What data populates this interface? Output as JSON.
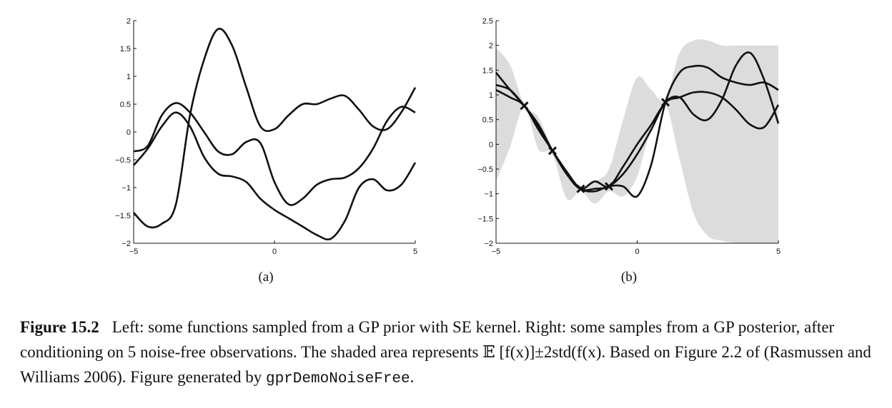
{
  "caption": {
    "figure_number": "Figure 15.2",
    "text_1": "Left: some functions sampled from a GP prior with SE kernel. Right: some samples from a GP posterior, after conditioning on 5 noise-free observations. The shaded area represents ",
    "formula": "𝔼 [f(x)]±2std(f(x)",
    "text_2": ". Based on Figure 2.2 of (Rasmussen and Williams 2006). Figure generated by ",
    "code": "gprDemoNoiseFree",
    "text_3": "."
  },
  "chart_data": [
    {
      "type": "line",
      "panel_label": "(a)",
      "xlim": [
        -5,
        5
      ],
      "ylim": [
        -2,
        2
      ],
      "xticks": [
        -5,
        0,
        5
      ],
      "xtick_labels": [
        "−5",
        "0",
        "5"
      ],
      "yticks": [
        -2,
        -1.5,
        -1,
        -0.5,
        0,
        0.5,
        1,
        1.5,
        2
      ],
      "ytick_labels": [
        "−2",
        "−1.5",
        "−1",
        "−0.5",
        "0",
        "0.5",
        "1",
        "1.5",
        "2"
      ],
      "grid": false,
      "series": [
        {
          "x": [
            -5,
            -4.5,
            -4,
            -3.5,
            -3,
            -2.5,
            -2,
            -1.5,
            -1,
            -0.5,
            0,
            0.5,
            1,
            1.5,
            2,
            2.5,
            3,
            3.5,
            4,
            4.5,
            5
          ],
          "y": [
            -0.6,
            -0.3,
            0.1,
            0.35,
            0.1,
            -0.45,
            -0.75,
            -0.8,
            -0.9,
            -1.2,
            -1.4,
            -1.55,
            -1.7,
            -1.85,
            -1.92,
            -1.6,
            -1.0,
            -0.85,
            -1.05,
            -0.95,
            -0.55
          ]
        },
        {
          "x": [
            -5,
            -4.5,
            -4,
            -3.5,
            -3,
            -2.5,
            -2,
            -1.5,
            -1,
            -0.5,
            0,
            0.5,
            1,
            1.5,
            2,
            2.5,
            3,
            3.5,
            4,
            4.5,
            5
          ],
          "y": [
            -1.45,
            -1.7,
            -1.65,
            -1.3,
            0.3,
            1.3,
            1.85,
            1.55,
            0.8,
            0.1,
            0.05,
            0.3,
            0.5,
            0.5,
            0.6,
            0.65,
            0.4,
            0.1,
            0.05,
            0.35,
            0.8
          ]
        },
        {
          "x": [
            -5,
            -4.5,
            -4,
            -3.5,
            -3,
            -2.5,
            -2,
            -1.5,
            -1,
            -0.5,
            0,
            0.5,
            1,
            1.5,
            2,
            2.5,
            3,
            3.5,
            4,
            4.5,
            5
          ],
          "y": [
            -0.35,
            -0.25,
            0.3,
            0.52,
            0.35,
            0.0,
            -0.35,
            -0.4,
            -0.18,
            -0.2,
            -0.9,
            -1.3,
            -1.2,
            -0.95,
            -0.85,
            -0.82,
            -0.65,
            -0.3,
            0.2,
            0.45,
            0.35
          ]
        }
      ]
    },
    {
      "type": "line",
      "panel_label": "(b)",
      "xlim": [
        -5,
        5
      ],
      "ylim": [
        -2,
        2.5
      ],
      "xticks": [
        -5,
        0,
        5
      ],
      "xtick_labels": [
        "−5",
        "0",
        "5"
      ],
      "yticks": [
        -2,
        -1.5,
        -1,
        -0.5,
        0,
        0.5,
        1,
        1.5,
        2,
        2.5
      ],
      "ytick_labels": [
        "−2",
        "−1.5",
        "−1",
        "−0.5",
        "0",
        "0.5",
        "1",
        "1.5",
        "2",
        "2.5"
      ],
      "grid": false,
      "observations": {
        "x": [
          -4,
          -3,
          -2,
          -1,
          1
        ],
        "y": [
          0.78,
          -0.13,
          -0.9,
          -0.85,
          0.85
        ]
      },
      "band": {
        "x": [
          -5,
          -4.5,
          -4,
          -3.5,
          -3,
          -2.5,
          -2,
          -1.5,
          -1,
          -0.5,
          0,
          0.5,
          1,
          1.5,
          2,
          2.5,
          3,
          3.5,
          4,
          4.5,
          5
        ],
        "upper": [
          1.95,
          1.6,
          0.8,
          0.55,
          -0.1,
          -0.6,
          -0.85,
          -0.75,
          -0.5,
          0.5,
          1.35,
          1.1,
          0.9,
          1.85,
          2.1,
          2.1,
          2.0,
          2.0,
          2.0,
          2.0,
          2.0
        ],
        "lower": [
          -0.75,
          -0.05,
          0.75,
          -0.1,
          -0.2,
          -1.1,
          -0.95,
          -1.2,
          -0.95,
          -1.05,
          -0.65,
          0.35,
          0.8,
          -0.3,
          -1.4,
          -1.85,
          -1.95,
          -2.0,
          -2.0,
          -2.0,
          -2.0
        ]
      },
      "series": [
        {
          "x": [
            -5,
            -4.5,
            -4,
            -3.5,
            -3,
            -2.5,
            -2,
            -1.5,
            -1,
            -0.5,
            0,
            0.5,
            1,
            1.5,
            2,
            2.5,
            3,
            3.5,
            4,
            4.5,
            5
          ],
          "y": [
            1.45,
            1.1,
            0.78,
            0.35,
            -0.13,
            -0.6,
            -0.9,
            -0.95,
            -0.85,
            -0.85,
            -1.05,
            -0.4,
            0.85,
            1.45,
            1.58,
            1.55,
            1.35,
            1.25,
            1.2,
            1.25,
            1.1
          ]
        },
        {
          "x": [
            -5,
            -4.5,
            -4,
            -3.5,
            -3,
            -2.5,
            -2,
            -1.5,
            -1,
            -0.5,
            0,
            0.5,
            1,
            1.5,
            2,
            2.5,
            3,
            3.5,
            4,
            4.5,
            5
          ],
          "y": [
            1.1,
            0.95,
            0.78,
            0.3,
            -0.13,
            -0.55,
            -0.9,
            -0.9,
            -0.85,
            -0.6,
            -0.2,
            0.3,
            0.85,
            0.95,
            0.6,
            0.5,
            0.9,
            1.6,
            1.85,
            1.3,
            0.42
          ]
        },
        {
          "x": [
            -5,
            -4.5,
            -4,
            -3.5,
            -3,
            -2.5,
            -2,
            -1.5,
            -1,
            -0.5,
            0,
            0.5,
            1,
            1.5,
            2,
            2.5,
            3,
            3.5,
            4,
            4.5,
            5
          ],
          "y": [
            1.2,
            1.1,
            0.78,
            0.4,
            -0.13,
            -0.6,
            -0.9,
            -0.75,
            -0.85,
            -0.45,
            0.0,
            0.4,
            0.85,
            0.95,
            1.05,
            1.05,
            0.95,
            0.7,
            0.4,
            0.35,
            0.8
          ]
        }
      ]
    }
  ]
}
